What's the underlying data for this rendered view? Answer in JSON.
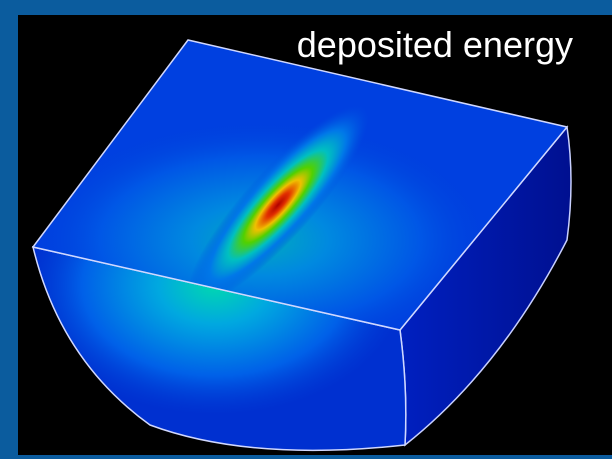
{
  "title": "deposited energy"
}
